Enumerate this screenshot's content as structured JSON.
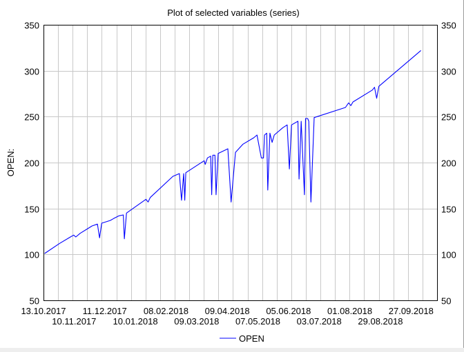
{
  "chart_data": {
    "type": "line",
    "title": "Plot of selected variables (series)",
    "ylabel": "OPEN:",
    "xlabel": "",
    "ylim": [
      50,
      350
    ],
    "y_ticks": [
      50,
      100,
      150,
      200,
      250,
      300,
      350
    ],
    "x_ticks_row1": [
      "13.10.2017",
      "11.12.2017",
      "08.02.2018",
      "09.04.2018",
      "05.06.2018",
      "01.08.2018",
      "27.09.2018"
    ],
    "x_ticks_row2": [
      "10.11.2017",
      "10.01.2018",
      "09.03.2018",
      "07.05.2018",
      "03.07.2018",
      "29.08.2018"
    ],
    "grid": true,
    "legend_placement": "bottom-center",
    "series": [
      {
        "name": "OPEN",
        "color": "#0000ff",
        "values": [
          [
            1,
            101
          ],
          [
            15,
            112
          ],
          [
            25,
            119
          ],
          [
            28,
            121
          ],
          [
            30,
            119
          ],
          [
            34,
            123
          ],
          [
            45,
            131
          ],
          [
            50,
            133
          ],
          [
            52,
            118
          ],
          [
            54,
            134
          ],
          [
            62,
            137
          ],
          [
            65,
            139
          ],
          [
            70,
            142
          ],
          [
            74,
            143
          ],
          [
            75,
            117
          ],
          [
            77,
            145
          ],
          [
            95,
            160
          ],
          [
            97,
            157
          ],
          [
            99,
            162
          ],
          [
            120,
            185
          ],
          [
            126,
            188
          ],
          [
            128,
            159
          ],
          [
            130,
            188
          ],
          [
            131,
            159
          ],
          [
            132,
            189
          ],
          [
            149,
            202
          ],
          [
            150,
            198
          ],
          [
            152,
            205
          ],
          [
            155,
            207
          ],
          [
            156,
            165
          ],
          [
            157,
            208
          ],
          [
            159,
            208
          ],
          [
            160,
            165
          ],
          [
            162,
            210
          ],
          [
            171,
            215
          ],
          [
            174,
            157
          ],
          [
            178,
            211
          ],
          [
            185,
            220
          ],
          [
            195,
            227
          ],
          [
            198,
            230
          ],
          [
            202,
            205
          ],
          [
            204,
            205
          ],
          [
            205,
            230
          ],
          [
            207,
            232
          ],
          [
            208,
            170
          ],
          [
            210,
            232
          ],
          [
            212,
            222
          ],
          [
            214,
            230
          ],
          [
            222,
            238
          ],
          [
            226,
            241
          ],
          [
            228,
            193
          ],
          [
            230,
            241
          ],
          [
            236,
            245
          ],
          [
            237,
            182
          ],
          [
            238,
            213
          ],
          [
            239,
            245
          ],
          [
            242,
            165
          ],
          [
            243,
            248
          ],
          [
            245,
            248
          ],
          [
            246,
            245
          ],
          [
            248,
            157
          ],
          [
            251,
            249
          ],
          [
            280,
            260
          ],
          [
            283,
            265
          ],
          [
            285,
            262
          ],
          [
            287,
            266
          ],
          [
            305,
            279
          ],
          [
            307,
            282
          ],
          [
            309,
            270
          ],
          [
            311,
            283
          ],
          [
            350,
            322
          ]
        ]
      }
    ]
  }
}
